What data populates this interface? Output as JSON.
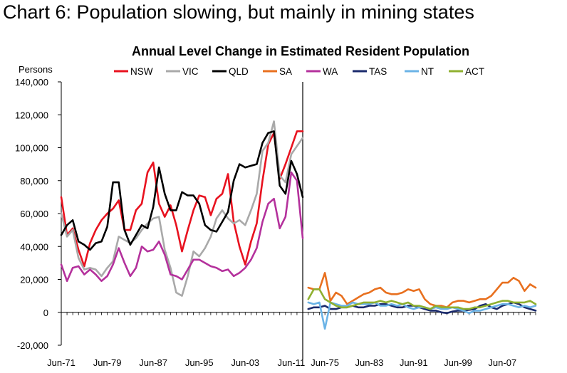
{
  "page_title": "Chart 6: Population slowing, but mainly in mining states",
  "chart_data": {
    "type": "line",
    "title": "Annual Level Change in Estimated Resident Population",
    "ylabel": "Persons",
    "ylim": [
      -20000,
      140000
    ],
    "y_ticks": [
      "140,000",
      "120,000",
      "100,000",
      "80,000",
      "60,000",
      "40,000",
      "20,000",
      "0",
      "-20,000"
    ],
    "y_tick_values": [
      140000,
      120000,
      100000,
      80000,
      60000,
      40000,
      20000,
      0,
      -20000
    ],
    "grid": false,
    "legend_position": "top",
    "panels": [
      {
        "x_ticks": [
          "Jun-71",
          "Jun-79",
          "Jun-87",
          "Jun-95",
          "Jun-03",
          "Jun-11"
        ],
        "x": [
          1971,
          1972,
          1973,
          1974,
          1975,
          1976,
          1977,
          1978,
          1979,
          1980,
          1981,
          1982,
          1983,
          1984,
          1985,
          1986,
          1987,
          1988,
          1989,
          1990,
          1991,
          1992,
          1993,
          1994,
          1995,
          1996,
          1997,
          1998,
          1999,
          2000,
          2001,
          2002,
          2003,
          2004,
          2005,
          2006,
          2007,
          2008,
          2009,
          2010,
          2011,
          2012,
          2013
        ],
        "series": [
          {
            "name": "NSW",
            "color": "#e8121f",
            "values": [
              70000,
              47000,
              51000,
              38000,
              28000,
              42000,
              50000,
              56000,
              60000,
              63000,
              68000,
              50000,
              50000,
              62000,
              66000,
              85000,
              91000,
              66000,
              58000,
              65000,
              53000,
              37000,
              50000,
              62000,
              71000,
              70000,
              59000,
              69000,
              72000,
              84000,
              55000,
              40000,
              29000,
              43000,
              54000,
              80000,
              102000,
              109000,
              81000,
              90000,
              100000,
              110000,
              110000
            ]
          },
          {
            "name": "VIC",
            "color": "#a9a9a9",
            "values": [
              60000,
              46000,
              50000,
              33000,
              26000,
              27000,
              26000,
              22000,
              27000,
              31000,
              46000,
              44000,
              42000,
              45000,
              50000,
              54000,
              57000,
              58000,
              38000,
              27000,
              12000,
              10000,
              22000,
              37000,
              34000,
              39000,
              46000,
              57000,
              62000,
              57000,
              54000,
              56000,
              53000,
              62000,
              72000,
              98000,
              103000,
              116000,
              83000,
              79000,
              96000,
              101000,
              106000
            ]
          },
          {
            "name": "QLD",
            "color": "#000000",
            "values": [
              47000,
              53000,
              56000,
              43000,
              41000,
              38000,
              42000,
              43000,
              52000,
              79000,
              79000,
              50000,
              41000,
              47000,
              53000,
              51000,
              64000,
              88000,
              72000,
              62000,
              62000,
              73000,
              71000,
              71000,
              66000,
              53000,
              50000,
              49000,
              55000,
              61000,
              80000,
              90000,
              88000,
              89000,
              90000,
              103000,
              109000,
              110000,
              77000,
              72000,
              92000,
              84000,
              70000
            ]
          },
          {
            "name": "WA",
            "color": "#b4319c",
            "values": [
              29000,
              19000,
              27000,
              28000,
              23000,
              26000,
              23000,
              19000,
              22000,
              29000,
              39000,
              30000,
              22000,
              27000,
              40000,
              37000,
              38000,
              43000,
              35000,
              23000,
              22000,
              20000,
              26000,
              32000,
              32000,
              30000,
              28000,
              27000,
              25000,
              26000,
              22000,
              24000,
              27000,
              32000,
              39000,
              55000,
              66000,
              69000,
              51000,
              58000,
              85000,
              80000,
              45000
            ]
          }
        ]
      },
      {
        "x_ticks": [
          "Jun-75",
          "Jun-83",
          "Jun-91",
          "Jun-99",
          "Jun-07"
        ],
        "x": [
          1972,
          1973,
          1974,
          1975,
          1976,
          1977,
          1978,
          1979,
          1980,
          1981,
          1982,
          1983,
          1984,
          1985,
          1986,
          1987,
          1988,
          1989,
          1990,
          1991,
          1992,
          1993,
          1994,
          1995,
          1996,
          1997,
          1998,
          1999,
          2000,
          2001,
          2002,
          2003,
          2004,
          2005,
          2006,
          2007,
          2008,
          2009,
          2010,
          2011,
          2012,
          2013
        ],
        "series": [
          {
            "name": "SA",
            "color": "#e8701f",
            "values": [
              15000,
              14000,
              14000,
              24000,
              7000,
              12000,
              10000,
              5000,
              7000,
              9000,
              11000,
              12000,
              14000,
              15000,
              12000,
              11000,
              11000,
              12000,
              14000,
              13000,
              14000,
              8000,
              5000,
              4000,
              4000,
              3000,
              6000,
              7000,
              7000,
              6000,
              7000,
              8000,
              8000,
              10000,
              14000,
              18000,
              18000,
              21000,
              19000,
              13000,
              17000,
              15000
            ]
          },
          {
            "name": "TAS",
            "color": "#1a2a6c",
            "values": [
              2000,
              3000,
              3000,
              4000,
              2000,
              2000,
              3000,
              3000,
              4000,
              3000,
              3000,
              4000,
              4000,
              5000,
              5000,
              4000,
              3000,
              3000,
              4000,
              4000,
              3000,
              2000,
              1000,
              1000,
              0,
              -500,
              500,
              1000,
              1000,
              1500,
              2000,
              4000,
              5000,
              3000,
              2000,
              4000,
              5000,
              6000,
              5000,
              3000,
              2000,
              1000
            ]
          },
          {
            "name": "NT",
            "color": "#6bb3e6",
            "values": [
              6000,
              5000,
              6000,
              -10000,
              6000,
              5000,
              4000,
              4000,
              6000,
              5000,
              5000,
              5000,
              6000,
              4000,
              4000,
              5000,
              4000,
              5000,
              3000,
              2000,
              3000,
              3000,
              2000,
              3000,
              2000,
              2000,
              3000,
              2000,
              1000,
              -500,
              1000,
              1000,
              2000,
              3000,
              4000,
              5000,
              5000,
              4000,
              3000,
              4000,
              3000,
              4000
            ]
          },
          {
            "name": "ACT",
            "color": "#8fb030",
            "values": [
              8000,
              14000,
              14000,
              8000,
              6000,
              4000,
              3000,
              3000,
              4000,
              5000,
              6000,
              6000,
              6000,
              7000,
              6000,
              7000,
              6000,
              5000,
              6000,
              4000,
              4000,
              3000,
              2000,
              4000,
              3000,
              3000,
              3000,
              3000,
              2000,
              2000,
              3000,
              3000,
              4000,
              5000,
              6000,
              7000,
              7000,
              6000,
              6000,
              6000,
              7000,
              5000
            ]
          }
        ]
      }
    ],
    "legend": [
      "NSW",
      "VIC",
      "QLD",
      "SA",
      "WA",
      "TAS",
      "NT",
      "ACT"
    ]
  }
}
